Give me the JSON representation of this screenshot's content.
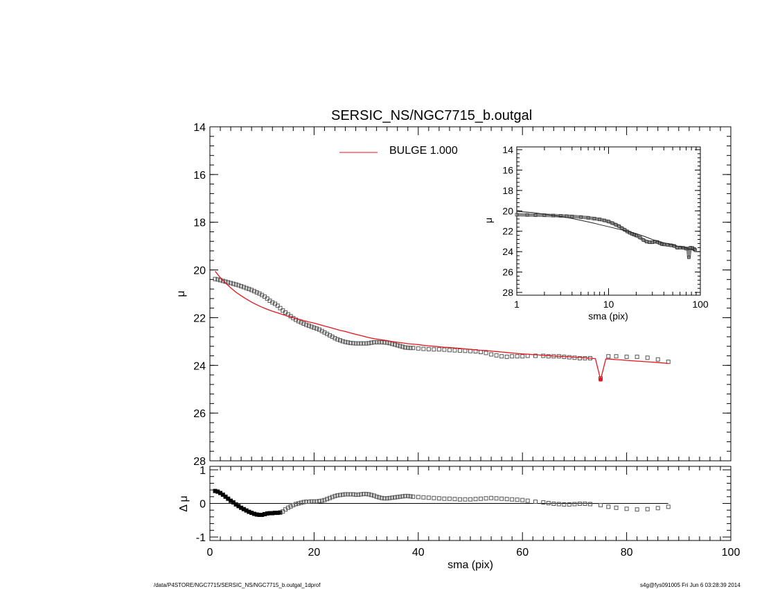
{
  "title": "SERSIC_NS/NGC7715_b.outgal",
  "footer": {
    "path": "/data/P4STORE/NGC7715/SERSIC_NS/NGC7715_b.outgal_1dprof",
    "stamp": "s4g@fys091005  Fri Jun  6 03:28:39 2014"
  },
  "colors": {
    "model": "#e8131b",
    "data": "#555555",
    "axis": "#000000"
  },
  "chart_data": [
    {
      "type": "scatter",
      "panel": "main",
      "title": "SERSIC_NS/NGC7715_b.outgal",
      "xlabel": "",
      "ylabel": "μ",
      "xlim": [
        0,
        100
      ],
      "ylim": [
        28,
        14
      ],
      "yticks": [
        "14",
        "16",
        "18",
        "20",
        "22",
        "24",
        "26",
        "28"
      ],
      "legend": {
        "placement": "top-center",
        "label": "BULGE  1.000"
      },
      "series": [
        {
          "marker": "open-square",
          "x": [
            1.0,
            1.5,
            2.0,
            2.5,
            3.0,
            3.5,
            4.0,
            4.5,
            5.0,
            5.5,
            6.0,
            6.5,
            7.0,
            7.5,
            8.0,
            8.5,
            9.0,
            9.5,
            10.0,
            10.5,
            11.0,
            11.5,
            12.0,
            12.5,
            13.0,
            13.5,
            14.0,
            14.5,
            15.0,
            15.5,
            16.0,
            16.5,
            17.0,
            17.5,
            18.0,
            18.5,
            19.0,
            19.5,
            20.0,
            20.5,
            21.0,
            21.5,
            22.0,
            22.5,
            23.0,
            23.5,
            24.0,
            24.5,
            25.0,
            25.5,
            26.0,
            26.5,
            27.0,
            27.5,
            28.0,
            28.5,
            29.0,
            29.5,
            30.0,
            30.5,
            31.0,
            31.5,
            32.0,
            32.5,
            33.0,
            33.5,
            34.0,
            34.5,
            35.0,
            35.5,
            36.0,
            36.5,
            37.0,
            37.5,
            38.0,
            38.5,
            39.0,
            40.0,
            41.0,
            42.0,
            43.0,
            44.0,
            45.0,
            46.0,
            47.0,
            48.0,
            49.0,
            50.0,
            51.0,
            52.0,
            53.0,
            54.0,
            55.0,
            56.0,
            57.0,
            58.0,
            59.0,
            60.0,
            61.0,
            62.5,
            64.0,
            65.0,
            66.0,
            67.0,
            68.0,
            69.0,
            70.0,
            71.0,
            72.0,
            73.0,
            75.0,
            76.5,
            78.0,
            80.0,
            82.0,
            84.0,
            86.0,
            88.0
          ],
          "y": [
            20.38,
            20.4,
            20.43,
            20.46,
            20.49,
            20.52,
            20.55,
            20.58,
            20.61,
            20.64,
            20.68,
            20.72,
            20.76,
            20.8,
            20.84,
            20.89,
            20.94,
            20.99,
            21.05,
            21.12,
            21.2,
            21.29,
            21.36,
            21.42,
            21.5,
            21.6,
            21.7,
            21.78,
            21.86,
            21.94,
            22.02,
            22.09,
            22.15,
            22.2,
            22.25,
            22.3,
            22.34,
            22.38,
            22.42,
            22.46,
            22.5,
            22.56,
            22.62,
            22.68,
            22.74,
            22.8,
            22.86,
            22.91,
            22.95,
            22.99,
            23.02,
            23.04,
            23.06,
            23.07,
            23.08,
            23.08,
            23.08,
            23.08,
            23.08,
            23.07,
            23.05,
            23.03,
            23.03,
            23.03,
            23.03,
            23.04,
            23.05,
            23.07,
            23.1,
            23.13,
            23.16,
            23.19,
            23.22,
            23.25,
            23.26,
            23.27,
            23.27,
            23.29,
            23.31,
            23.32,
            23.33,
            23.33,
            23.34,
            23.36,
            23.37,
            23.38,
            23.39,
            23.4,
            23.41,
            23.44,
            23.48,
            23.54,
            23.58,
            23.62,
            23.64,
            23.62,
            23.62,
            23.62,
            23.6,
            23.6,
            23.6,
            23.62,
            23.62,
            23.62,
            23.64,
            23.66,
            23.68,
            23.7,
            23.7,
            23.7,
            24.55,
            23.62,
            23.62,
            23.64,
            23.64,
            23.68,
            23.75,
            23.85
          ]
        },
        {
          "marker": "line",
          "x": [
            1,
            2,
            3,
            4,
            5,
            6,
            7,
            8,
            9,
            10,
            11,
            12,
            13,
            14,
            15,
            16,
            17,
            18,
            19,
            20,
            21,
            22,
            23,
            24,
            25,
            26,
            27,
            28,
            29,
            30,
            31,
            32,
            33,
            34,
            35,
            36,
            37,
            38,
            39,
            40,
            41,
            42,
            43,
            44,
            45,
            46,
            47,
            48,
            49,
            50,
            51,
            52,
            53,
            54,
            55,
            56,
            57,
            58,
            59,
            60,
            61,
            62,
            63,
            64,
            65,
            66,
            67,
            68,
            69,
            70,
            71,
            72,
            73,
            74,
            75,
            76,
            77,
            78,
            79,
            80,
            82,
            84,
            86,
            88
          ],
          "y": [
            20.05,
            20.32,
            20.55,
            20.75,
            20.93,
            21.08,
            21.22,
            21.35,
            21.46,
            21.56,
            21.65,
            21.73,
            21.8,
            21.87,
            21.94,
            22.0,
            22.06,
            22.12,
            22.18,
            22.23,
            22.29,
            22.35,
            22.41,
            22.47,
            22.53,
            22.58,
            22.64,
            22.7,
            22.75,
            22.81,
            22.86,
            22.9,
            22.93,
            22.96,
            23.0,
            23.03,
            23.06,
            23.09,
            23.11,
            23.13,
            23.16,
            23.18,
            23.2,
            23.22,
            23.24,
            23.25,
            23.27,
            23.29,
            23.31,
            23.33,
            23.35,
            23.37,
            23.38,
            23.4,
            23.42,
            23.44,
            23.46,
            23.48,
            23.5,
            23.52,
            23.53,
            23.55,
            23.56,
            23.58,
            23.59,
            23.61,
            23.62,
            23.63,
            23.64,
            23.66,
            23.67,
            23.68,
            23.7,
            23.72,
            24.6,
            23.73,
            23.74,
            23.76,
            23.77,
            23.79,
            23.82,
            23.85,
            23.88,
            23.92
          ]
        }
      ]
    },
    {
      "type": "scatter",
      "panel": "residual",
      "xlabel": "sma (pix)",
      "ylabel": "Δ μ",
      "xlim": [
        0,
        100
      ],
      "ylim": [
        -1,
        1
      ],
      "xticks": [
        "0",
        "20",
        "40",
        "60",
        "80",
        "100"
      ],
      "yticks": [
        "1",
        "0",
        "-1"
      ],
      "series": [
        {
          "marker": "open-square",
          "x": [
            1.0,
            1.5,
            2.0,
            2.5,
            3.0,
            3.5,
            4.0,
            4.5,
            5.0,
            5.5,
            6.0,
            6.5,
            7.0,
            7.5,
            8.0,
            8.5,
            9.0,
            9.5,
            10.0,
            10.5,
            11.0,
            11.5,
            12.0,
            12.5,
            13.0,
            13.5,
            14.0,
            14.5,
            15.0,
            15.5,
            16.0,
            16.5,
            17.0,
            17.5,
            18.0,
            18.5,
            19.0,
            19.5,
            20.0,
            20.5,
            21.0,
            21.5,
            22.0,
            22.5,
            23.0,
            23.5,
            24.0,
            24.5,
            25.0,
            25.5,
            26.0,
            26.5,
            27.0,
            27.5,
            28.0,
            28.5,
            29.0,
            29.5,
            30.0,
            30.5,
            31.0,
            31.5,
            32.0,
            32.5,
            33.0,
            33.5,
            34.0,
            34.5,
            35.0,
            35.5,
            36.0,
            36.5,
            37.0,
            37.5,
            38.0,
            38.5,
            39.0,
            40.0,
            41.0,
            42.0,
            43.0,
            44.0,
            45.0,
            46.0,
            47.0,
            48.0,
            49.0,
            50.0,
            51.0,
            52.0,
            53.0,
            54.0,
            55.0,
            56.0,
            57.0,
            58.0,
            59.0,
            60.0,
            61.0,
            62.5,
            64.0,
            65.0,
            66.0,
            67.0,
            68.0,
            69.0,
            70.0,
            71.0,
            72.0,
            73.0,
            75.0,
            76.5,
            78.0,
            80.0,
            82.0,
            84.0,
            86.0,
            88.0
          ],
          "y": [
            0.37,
            0.35,
            0.31,
            0.26,
            0.2,
            0.14,
            0.08,
            0.03,
            -0.03,
            -0.08,
            -0.13,
            -0.17,
            -0.21,
            -0.25,
            -0.28,
            -0.31,
            -0.33,
            -0.34,
            -0.34,
            -0.32,
            -0.3,
            -0.29,
            -0.29,
            -0.28,
            -0.28,
            -0.27,
            -0.24,
            -0.18,
            -0.13,
            -0.09,
            -0.05,
            -0.02,
            0.0,
            0.02,
            0.04,
            0.05,
            0.05,
            0.06,
            0.06,
            0.06,
            0.07,
            0.08,
            0.1,
            0.13,
            0.16,
            0.19,
            0.22,
            0.24,
            0.25,
            0.26,
            0.27,
            0.27,
            0.27,
            0.27,
            0.26,
            0.26,
            0.27,
            0.28,
            0.28,
            0.27,
            0.25,
            0.23,
            0.2,
            0.18,
            0.16,
            0.15,
            0.15,
            0.16,
            0.17,
            0.18,
            0.19,
            0.2,
            0.21,
            0.22,
            0.22,
            0.21,
            0.2,
            0.19,
            0.18,
            0.17,
            0.16,
            0.15,
            0.14,
            0.14,
            0.13,
            0.12,
            0.12,
            0.12,
            0.13,
            0.14,
            0.15,
            0.16,
            0.15,
            0.14,
            0.13,
            0.12,
            0.11,
            0.1,
            0.08,
            0.05,
            0.03,
            0.01,
            -0.01,
            -0.02,
            -0.03,
            -0.03,
            -0.02,
            -0.01,
            -0.01,
            -0.02,
            -0.05,
            -0.1,
            -0.13,
            -0.16,
            -0.18,
            -0.17,
            -0.14,
            -0.1
          ]
        }
      ]
    },
    {
      "type": "line",
      "panel": "inset",
      "xlabel": "sma (pix)",
      "ylabel": "μ",
      "xscale": "log",
      "xlim": [
        1,
        100
      ],
      "ylim": [
        28,
        14
      ],
      "xticks": [
        "1",
        "10",
        "100"
      ],
      "yticks": [
        "14",
        "16",
        "18",
        "20",
        "22",
        "24",
        "26",
        "28"
      ],
      "series": [
        {
          "marker": "open-square",
          "x": [
            1.0,
            1.3,
            1.6,
            2.0,
            2.5,
            3.0,
            3.5,
            4.0,
            5.0,
            6.0,
            7.0,
            8.0,
            9.0,
            10.0,
            11.0,
            12.0,
            13.0,
            14.0,
            15.0,
            16.0,
            17.0,
            18.0,
            19.0,
            20.0,
            22.0,
            24.0,
            26.0,
            28.0,
            30.0,
            32.0,
            34.0,
            36.0,
            38.0,
            40.0,
            44.0,
            48.0,
            52.0,
            56.0,
            60.0,
            65.0,
            70.0,
            73.0,
            75.0,
            78.0,
            82.0,
            86.0,
            88.0
          ],
          "y": [
            20.38,
            20.4,
            20.42,
            20.43,
            20.46,
            20.49,
            20.52,
            20.55,
            20.61,
            20.68,
            20.76,
            20.84,
            20.94,
            21.05,
            21.2,
            21.36,
            21.5,
            21.7,
            21.86,
            22.02,
            22.15,
            22.25,
            22.34,
            22.42,
            22.62,
            22.86,
            23.02,
            23.08,
            23.08,
            23.03,
            23.05,
            23.16,
            23.26,
            23.29,
            23.33,
            23.38,
            23.44,
            23.62,
            23.6,
            23.62,
            23.7,
            23.7,
            24.55,
            23.62,
            23.64,
            23.75,
            23.85
          ]
        },
        {
          "marker": "line",
          "x": [
            1.0,
            1.5,
            2.0,
            3.0,
            4.0,
            5.0,
            6.0,
            7.0,
            8.0,
            10.0,
            12.0,
            14.0,
            16.0,
            18.0,
            20.0,
            25.0,
            30.0,
            35.0,
            40.0,
            50.0,
            60.0,
            70.0,
            80.0,
            88.0
          ],
          "y": [
            20.05,
            20.17,
            20.32,
            20.55,
            20.75,
            20.93,
            21.08,
            21.22,
            21.35,
            21.56,
            21.73,
            21.87,
            22.0,
            22.12,
            22.23,
            22.53,
            22.81,
            23.0,
            23.13,
            23.33,
            23.52,
            23.66,
            23.79,
            23.92
          ]
        }
      ]
    }
  ]
}
